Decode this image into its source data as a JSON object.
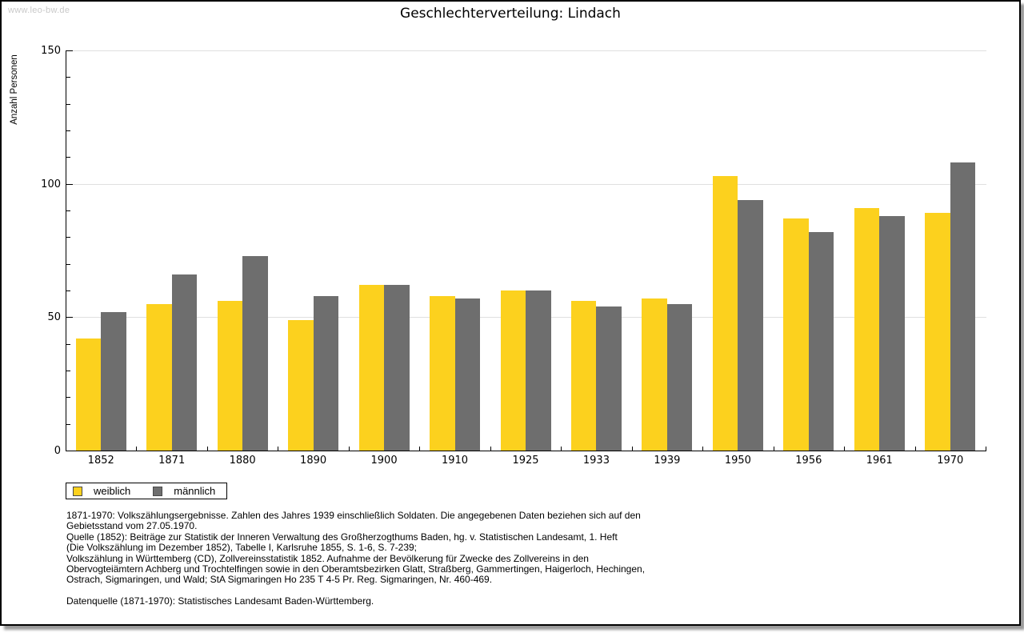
{
  "page": {
    "watermark": "www.leo-bw.de",
    "title": "Geschlechterverteilung: Lindach"
  },
  "chart_data": {
    "type": "bar",
    "title": "Geschlechterverteilung: Lindach",
    "xlabel": "",
    "ylabel": "Anzahl Personen",
    "ylim": [
      0,
      150
    ],
    "yticks": [
      0,
      50,
      100,
      150
    ],
    "minor_tick_interval": 10,
    "grid": true,
    "legend_position": "bottom-left",
    "categories": [
      "1852",
      "1871",
      "1880",
      "1890",
      "1900",
      "1910",
      "1925",
      "1933",
      "1939",
      "1950",
      "1956",
      "1961",
      "1970"
    ],
    "series": [
      {
        "name": "weiblich",
        "color": "#FCD11E",
        "values": [
          42,
          55,
          56,
          49,
          62,
          58,
          60,
          56,
          57,
          103,
          87,
          91,
          89
        ]
      },
      {
        "name": "männlich",
        "color": "#6E6E6E",
        "values": [
          52,
          66,
          73,
          58,
          62,
          57,
          60,
          54,
          55,
          94,
          82,
          88,
          108
        ]
      }
    ]
  },
  "legend": {
    "items": [
      {
        "label": "weiblich",
        "color": "#FCD11E"
      },
      {
        "label": "männlich",
        "color": "#6E6E6E"
      }
    ]
  },
  "footnotes": {
    "lines": [
      "1871-1970: Volkszählungsergebnisse. Zahlen des Jahres 1939 einschließlich Soldaten. Die angegebenen Daten beziehen sich auf den",
      "Gebietsstand vom 27.05.1970.",
      "Quelle (1852): Beiträge zur Statistik der Inneren Verwaltung des Großherzogthums Baden, hg. v. Statistischen Landesamt, 1. Heft",
      "(Die Volkszählung im Dezember 1852), Tabelle I, Karlsruhe 1855, S. 1-6, S. 7-239;",
      "Volkszählung in Württemberg (CD), Zollvereinsstatistik 1852. Aufnahme der Bevölkerung für Zwecke des Zollvereins in den",
      "Obervogteiämtern Achberg und Trochtelfingen sowie in den Oberamtsbezirken Glatt, Straßberg, Gammertingen, Haigerloch, Hechingen,",
      "Ostrach, Sigmaringen, und Wald; StA Sigmaringen Ho 235 T 4-5 Pr. Reg. Sigmaringen, Nr. 460-469."
    ],
    "datasource": "Datenquelle (1871-1970): Statistisches Landesamt Baden-Württemberg."
  }
}
